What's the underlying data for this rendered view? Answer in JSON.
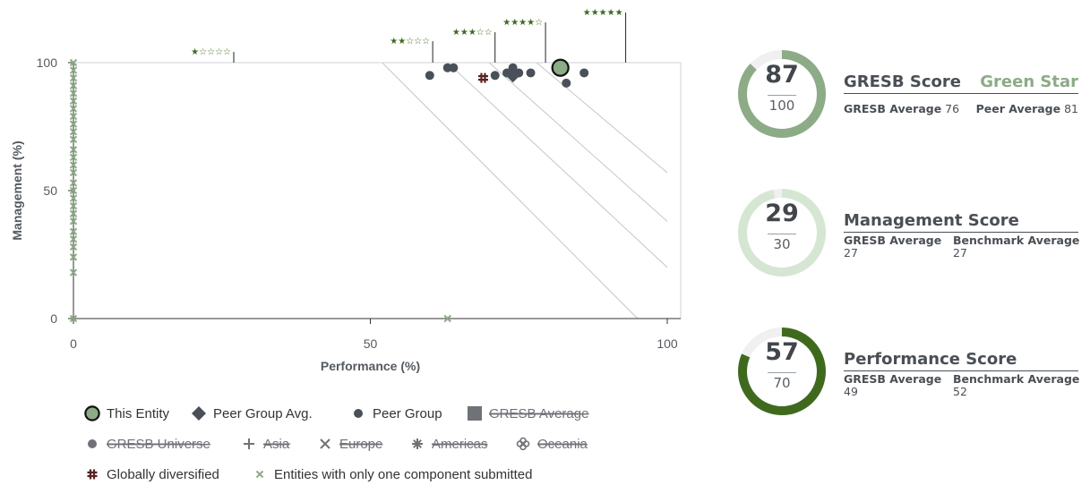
{
  "chart_data": {
    "type": "scatter",
    "xlabel": "Performance (%)",
    "ylabel": "Management (%)",
    "xlim": [
      0,
      100
    ],
    "ylim": [
      0,
      100
    ],
    "xticks": [
      "0",
      "50",
      "100"
    ],
    "yticks": [
      "0",
      "50",
      "100"
    ],
    "grid": false,
    "star_thresholds": [
      {
        "label": "★☆☆☆☆",
        "x": 27
      },
      {
        "label": "★★☆☆☆",
        "x": 60.5
      },
      {
        "label": "★★★☆☆",
        "x": 71
      },
      {
        "label": "★★★★☆",
        "x": 79.5
      },
      {
        "label": "★★★★★",
        "x": 93
      }
    ],
    "isolines": [
      {
        "x1": 52,
        "y1": 100,
        "x2": 95,
        "y2": 0
      },
      {
        "x1": 63,
        "y1": 100,
        "x2": 100,
        "y2": 20
      },
      {
        "x1": 70,
        "y1": 100,
        "x2": 100,
        "y2": 38
      },
      {
        "x1": 78,
        "y1": 100,
        "x2": 100,
        "y2": 57
      }
    ],
    "series": [
      {
        "name": "This Entity",
        "points": [
          [
            82,
            98
          ]
        ]
      },
      {
        "name": "Peer Group Avg.",
        "points": [
          [
            74,
            95
          ]
        ]
      },
      {
        "name": "Peer Group",
        "points": [
          [
            60,
            95
          ],
          [
            63,
            98
          ],
          [
            64,
            98
          ],
          [
            71,
            95
          ],
          [
            73,
            96
          ],
          [
            74,
            98
          ],
          [
            75,
            96
          ],
          [
            77,
            96
          ],
          [
            83,
            92
          ],
          [
            86,
            96
          ]
        ]
      },
      {
        "name": "Globally diversified",
        "points": [
          [
            69,
            94
          ]
        ]
      },
      {
        "name": "Entities with only one component submitted",
        "points": [
          [
            63,
            0
          ],
          [
            0,
            100
          ],
          [
            0,
            97
          ],
          [
            0,
            94
          ],
          [
            0,
            91
          ],
          [
            0,
            88
          ],
          [
            0,
            85
          ],
          [
            0,
            82
          ],
          [
            0,
            79
          ],
          [
            0,
            76
          ],
          [
            0,
            73
          ],
          [
            0,
            70
          ],
          [
            0,
            66
          ],
          [
            0,
            63
          ],
          [
            0,
            60
          ],
          [
            0,
            57
          ],
          [
            0,
            53
          ],
          [
            0,
            50
          ],
          [
            0,
            47
          ],
          [
            0,
            44
          ],
          [
            0,
            41
          ],
          [
            0,
            38
          ],
          [
            0,
            34
          ],
          [
            0,
            31
          ],
          [
            0,
            28
          ],
          [
            0,
            24
          ],
          [
            0,
            18
          ],
          [
            0,
            0
          ]
        ]
      }
    ]
  },
  "legend": [
    {
      "label": "This Entity",
      "symbol": "this-entity",
      "active": true
    },
    {
      "label": "Peer Group Avg.",
      "symbol": "diamond",
      "active": true
    },
    {
      "label": "Peer Group",
      "symbol": "dot-dark",
      "active": true
    },
    {
      "label": "GRESB Average",
      "symbol": "square",
      "active": false
    },
    {
      "label": "GRESB Universe",
      "symbol": "dot-grey",
      "active": false
    },
    {
      "label": "Asia",
      "symbol": "plus",
      "active": false
    },
    {
      "label": "Europe",
      "symbol": "cross",
      "active": false
    },
    {
      "label": "Americas",
      "symbol": "asterisk",
      "active": false
    },
    {
      "label": "Oceania",
      "symbol": "flower",
      "active": false
    },
    {
      "label": "Globally diversified",
      "symbol": "hash",
      "active": true
    },
    {
      "label": "Entities with only one component submitted",
      "symbol": "x-green",
      "active": true
    }
  ],
  "colors": {
    "this_entity": "#8cab86",
    "peer": "#4a5058",
    "globally": "#5a2222",
    "single": "#8cab86",
    "stars": "#3f6a1e",
    "gauge_total": "#8cab86",
    "gauge_management": "#d5e7d3",
    "gauge_performance": "#3f6a1e",
    "gauge_track": "#f0f0f0"
  },
  "scores": {
    "gresb": {
      "value": "87",
      "max": "100",
      "title": "GRESB Score",
      "rating": "Green Star",
      "avg_label": "GRESB Average",
      "avg_value": "76",
      "peer_label": "Peer Average",
      "peer_value": "81",
      "fraction": 0.87
    },
    "management": {
      "value": "29",
      "max": "30",
      "title": "Management Score",
      "avg_label": "GRESB Average",
      "avg_value": "27",
      "bench_label": "Benchmark Average",
      "bench_value": "27",
      "fraction": 0.9667
    },
    "performance": {
      "value": "57",
      "max": "70",
      "title": "Performance Score",
      "avg_label": "GRESB Average",
      "avg_value": "49",
      "bench_label": "Benchmark Average",
      "bench_value": "52",
      "fraction": 0.8143
    }
  }
}
